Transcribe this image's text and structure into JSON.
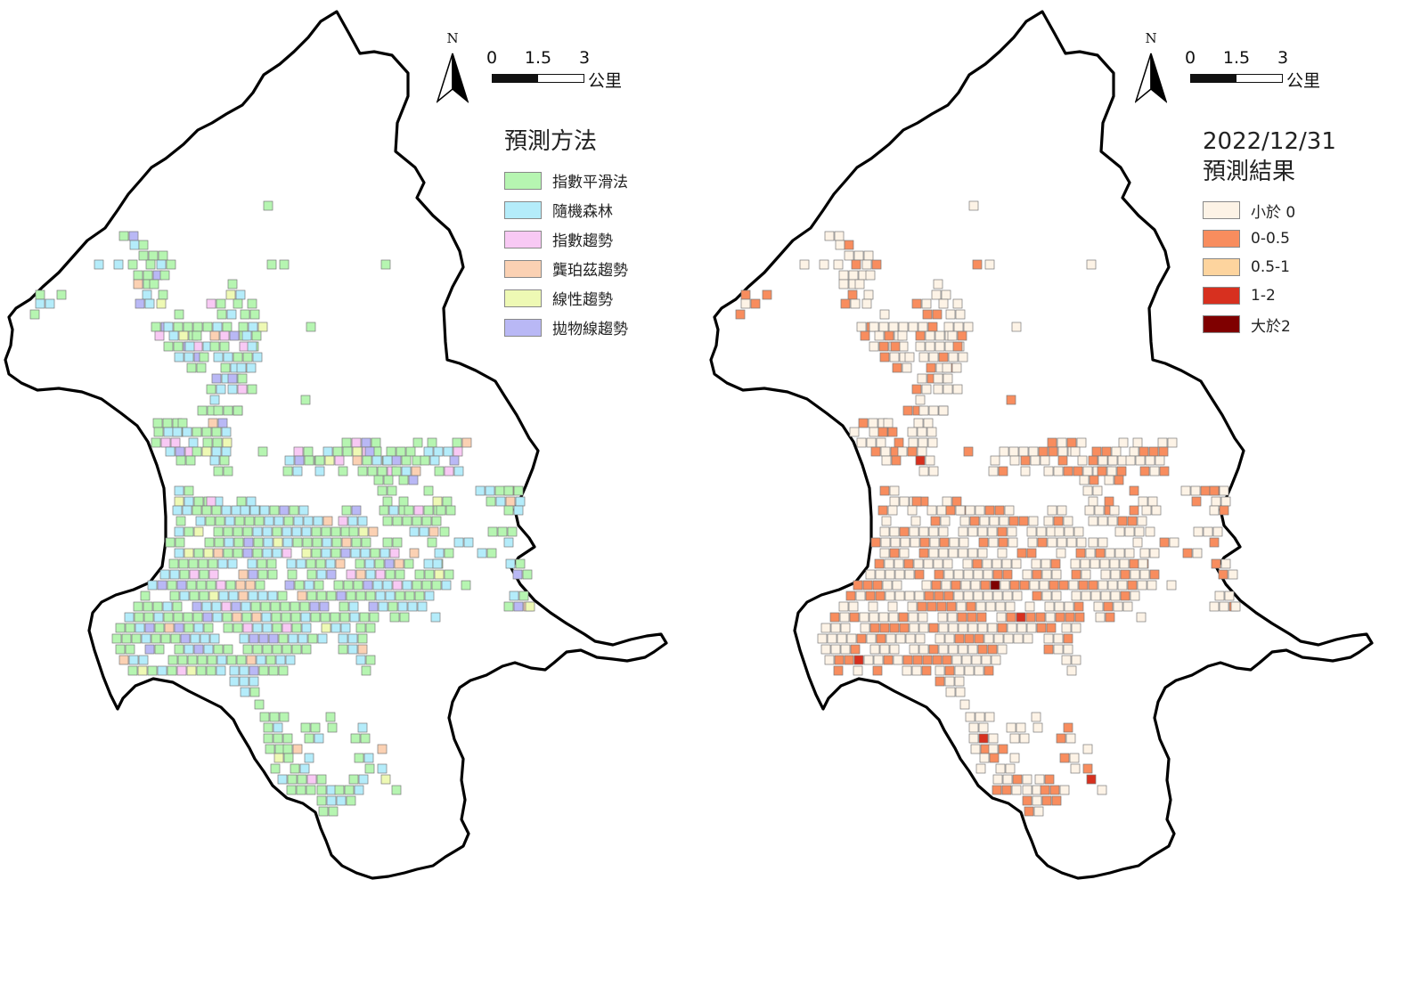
{
  "left_map": {
    "north_label": "N",
    "scale": {
      "ticks": [
        "0",
        "1.5",
        "3"
      ],
      "unit": "公里"
    },
    "legend": {
      "title": "預測方法",
      "items": [
        {
          "label": "指數平滑法",
          "color": "#b6f5b1"
        },
        {
          "label": "隨機森林",
          "color": "#b4ecfa"
        },
        {
          "label": "指數趨勢",
          "color": "#f8c9f4"
        },
        {
          "label": "龔珀茲趨勢",
          "color": "#fbd1b3"
        },
        {
          "label": "線性趨勢",
          "color": "#eef9b4"
        },
        {
          "label": "拋物線趨勢",
          "color": "#b9b8f5"
        }
      ]
    }
  },
  "right_map": {
    "north_label": "N",
    "scale": {
      "ticks": [
        "0",
        "1.5",
        "3"
      ],
      "unit": "公里"
    },
    "legend": {
      "title_line1": "2022/12/31",
      "title_line2": "預測結果",
      "items": [
        {
          "label": "小於 0",
          "color": "#fdf3e6"
        },
        {
          "label": "0-0.5",
          "color": "#f88d5e"
        },
        {
          "label": "0.5-1",
          "color": "#fdd49e"
        },
        {
          "label": "1-2",
          "color": "#d7301f"
        },
        {
          "label": "大於2",
          "color": "#7f0000"
        }
      ]
    }
  }
}
